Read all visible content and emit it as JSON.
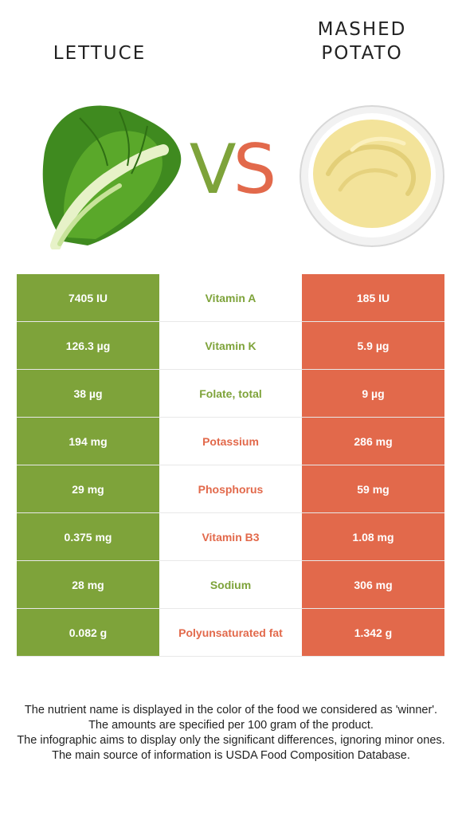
{
  "left_food": {
    "name": "LETTUCE",
    "color": "#7ea33a",
    "image_icon": "lettuce-image"
  },
  "right_food": {
    "name_line1": "MASHED",
    "name_line2": "POTATO",
    "color": "#e2694b",
    "image_icon": "mashed-potato-image"
  },
  "vs": {
    "v": "V",
    "s": "S"
  },
  "rows": [
    {
      "left": "7405 IU",
      "nutrient": "Vitamin A",
      "right": "185 IU",
      "winner": "left"
    },
    {
      "left": "126.3 µg",
      "nutrient": "Vitamin K",
      "right": "5.9 µg",
      "winner": "left"
    },
    {
      "left": "38 µg",
      "nutrient": "Folate, total",
      "right": "9 µg",
      "winner": "left"
    },
    {
      "left": "194 mg",
      "nutrient": "Potassium",
      "right": "286 mg",
      "winner": "right"
    },
    {
      "left": "29 mg",
      "nutrient": "Phosphorus",
      "right": "59 mg",
      "winner": "right"
    },
    {
      "left": "0.375 mg",
      "nutrient": "Vitamin B3",
      "right": "1.08 mg",
      "winner": "right"
    },
    {
      "left": "28 mg",
      "nutrient": "Sodium",
      "right": "306 mg",
      "winner": "left"
    },
    {
      "left": "0.082 g",
      "nutrient": "Polyunsaturated fat",
      "right": "1.342 g",
      "winner": "right"
    }
  ],
  "footer": [
    "The nutrient name is displayed in the color of the food we considered as 'winner'.",
    "The amounts are specified per 100 gram of the product.",
    "The infographic aims to display only the significant differences, ignoring minor ones.",
    "The main source of information is USDA Food Composition Database."
  ]
}
